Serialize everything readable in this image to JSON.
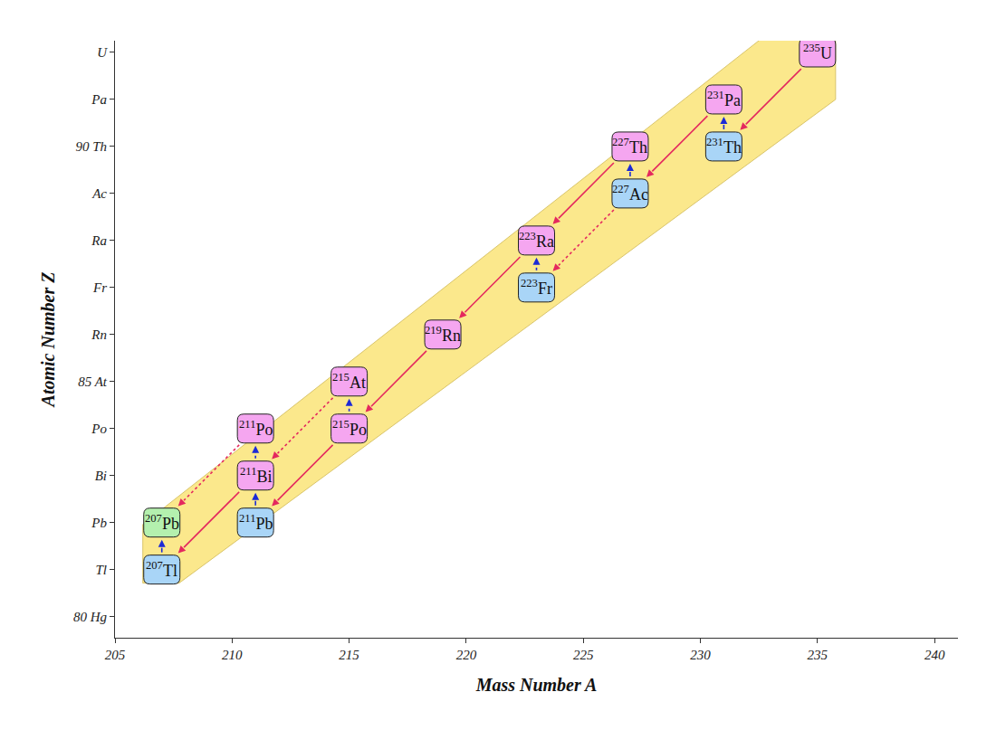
{
  "chart_data": {
    "type": "scatter",
    "x_label": "Mass Number A",
    "y_label": "Atomic Number Z",
    "xlim": [
      205,
      241
    ],
    "xticks": [
      205,
      210,
      215,
      220,
      225,
      230,
      235,
      240
    ],
    "ylim": [
      79.55,
      92.25
    ],
    "yticks": [
      {
        "value": 80,
        "label": "80 Hg"
      },
      {
        "value": 81,
        "label": "Tl"
      },
      {
        "value": 82,
        "label": "Pb"
      },
      {
        "value": 83,
        "label": "Bi"
      },
      {
        "value": 84,
        "label": "Po"
      },
      {
        "value": 85,
        "label": "85 At"
      },
      {
        "value": 86,
        "label": "Rn"
      },
      {
        "value": 87,
        "label": "Fr"
      },
      {
        "value": 88,
        "label": "Ra"
      },
      {
        "value": 89,
        "label": "Ac"
      },
      {
        "value": 90,
        "label": "90 Th"
      },
      {
        "value": 91,
        "label": "Pa"
      },
      {
        "value": 92,
        "label": "U"
      }
    ],
    "grid": false,
    "series": [
      {
        "color": "#f5a6f0",
        "marker": "rounded-square",
        "x": [
          235,
          231,
          227,
          223,
          219,
          215,
          215,
          211,
          211
        ],
        "y": [
          92,
          91,
          90,
          88,
          86,
          84,
          85,
          83,
          84
        ],
        "labels": [
          "U",
          "Pa",
          "Th",
          "Ra",
          "Rn",
          "Po",
          "At",
          "Bi",
          "Po"
        ]
      },
      {
        "color": "#a9d5f7",
        "marker": "rounded-square",
        "x": [
          231,
          227,
          223,
          211,
          207
        ],
        "y": [
          90,
          89,
          87,
          82,
          81
        ],
        "labels": [
          "Th",
          "Ac",
          "Fr",
          "Pb",
          "Tl"
        ]
      },
      {
        "color": "#b4f0ae",
        "marker": "rounded-square",
        "x": [
          207
        ],
        "y": [
          82
        ],
        "labels": [
          "Pb"
        ]
      }
    ],
    "arrows": [
      {
        "color": "#e4285e",
        "line_style": "solid",
        "x0": [
          235,
          231,
          227,
          223,
          219,
          215,
          211
        ],
        "y0": [
          92,
          91,
          90,
          88,
          86,
          84,
          83
        ],
        "x1": [
          231,
          227,
          223,
          219,
          215,
          211,
          207
        ],
        "y1": [
          90,
          89,
          88,
          86,
          84,
          82,
          81
        ]
      },
      {
        "color": "#e4285e",
        "line_style": "dashed",
        "x0": [
          227,
          215,
          211
        ],
        "y0": [
          89,
          85,
          84
        ],
        "x1": [
          223,
          211,
          207
        ],
        "y1": [
          87,
          83,
          82
        ]
      },
      {
        "color": "#1c2ad6",
        "line_style": "solid",
        "x0": [
          231,
          227,
          211,
          207
        ],
        "y0": [
          90,
          89,
          82,
          81
        ],
        "x1": [
          231,
          227,
          211,
          207
        ],
        "y1": [
          91,
          90,
          83,
          82
        ]
      },
      {
        "color": "#1c2ad6",
        "line_style": "dashed",
        "x0": [
          223,
          215,
          211
        ],
        "y0": [
          87,
          84,
          83
        ],
        "x1": [
          223,
          215,
          211
        ],
        "y1": [
          88,
          85,
          84
        ]
      }
    ]
  }
}
